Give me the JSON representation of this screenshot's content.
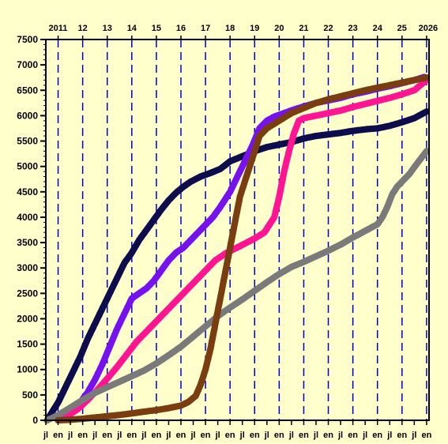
{
  "chart_data": {
    "type": "scatter",
    "title": "",
    "xlabel": "",
    "ylabel": "",
    "background": "#ffffcc",
    "grid": "dashed vertical lines at each January",
    "gridline_color": "#0000cc",
    "xlim": [
      2010.5,
      2026.1
    ],
    "ylim": [
      0,
      7500
    ],
    "y_ticks": [
      0,
      500,
      1000,
      1500,
      2000,
      2500,
      3000,
      3500,
      4000,
      4500,
      5000,
      5500,
      6000,
      6500,
      7000,
      7500
    ],
    "y_tick_labels": [
      "0",
      "500",
      "1000",
      "1500",
      "2000",
      "2500",
      "3000",
      "3500",
      "4000",
      "4500",
      "5000",
      "5500",
      "6000",
      "6500",
      "7000",
      "7500"
    ],
    "year_ticks": [
      2011,
      2012,
      2013,
      2014,
      2015,
      2016,
      2017,
      2018,
      2019,
      2020,
      2021,
      2022,
      2023,
      2024,
      2025,
      2026
    ],
    "year_labels": [
      "2011",
      "12",
      "13",
      "14",
      "15",
      "16",
      "17",
      "18",
      "19",
      "20",
      "21",
      "22",
      "23",
      "24",
      "25",
      "2026"
    ],
    "month_ticks": [
      2010.5,
      2011,
      2011.5,
      2012,
      2012.5,
      2013,
      2013.5,
      2014,
      2014.5,
      2015,
      2015.5,
      2016,
      2016.5,
      2017,
      2017.5,
      2018,
      2018.5,
      2019,
      2019.5,
      2020,
      2020.5,
      2021,
      2021.5,
      2022,
      2022.5,
      2023,
      2023.5,
      2024,
      2024.5,
      2025,
      2025.5,
      2026
    ],
    "month_labels": [
      "jl",
      "en",
      "jl",
      "en",
      "jl",
      "en",
      "jl",
      "en",
      "jl",
      "en",
      "jl",
      "en",
      "jl",
      "en",
      "jl",
      "en",
      "jl",
      "en",
      "jl",
      "en",
      "jl",
      "en",
      "jl",
      "en",
      "jl",
      "en",
      "jl",
      "en",
      "jl",
      "en",
      "jl",
      "en"
    ],
    "series": [
      {
        "color": "#0d0d4d",
        "x": [
          2010.55,
          2010.7,
          2011.0,
          2011.3,
          2011.6,
          2011.9,
          2012.2,
          2012.5,
          2012.8,
          2013.1,
          2013.4,
          2013.7,
          2014.0,
          2014.3,
          2014.6,
          2014.9,
          2015.2,
          2015.5,
          2015.8,
          2016.1,
          2016.4,
          2016.8,
          2017.2,
          2017.6,
          2018.0,
          2018.5,
          2019.0,
          2019.5,
          2020.0,
          2020.5,
          2021.0,
          2021.5,
          2022.0,
          2022.5,
          2023.0,
          2023.5,
          2024.0,
          2024.5,
          2025.0,
          2025.5,
          2026.0
        ],
        "y": [
          0,
          120,
          350,
          650,
          950,
          1250,
          1600,
          1900,
          2200,
          2500,
          2800,
          3100,
          3300,
          3550,
          3750,
          3950,
          4150,
          4330,
          4480,
          4600,
          4700,
          4800,
          4870,
          4950,
          5100,
          5200,
          5300,
          5380,
          5430,
          5480,
          5550,
          5600,
          5630,
          5660,
          5700,
          5730,
          5750,
          5800,
          5870,
          5950,
          6080
        ]
      },
      {
        "color": "#7711ee",
        "x": [
          2011.0,
          2011.3,
          2011.6,
          2011.9,
          2012.2,
          2012.5,
          2012.8,
          2013.1,
          2013.4,
          2013.7,
          2014.0,
          2014.3,
          2014.6,
          2014.9,
          2015.2,
          2015.5,
          2015.8,
          2016.1,
          2016.4,
          2016.7,
          2017.0,
          2017.3,
          2017.6,
          2018.0,
          2018.3,
          2018.6,
          2018.9,
          2019.2,
          2019.5,
          2019.8,
          2020.2,
          2020.6,
          2021.0,
          2021.5,
          2022.0,
          2022.5,
          2023.0,
          2023.5,
          2024.0,
          2024.5,
          2025.0,
          2025.5,
          2025.9
        ],
        "y": [
          0,
          80,
          200,
          350,
          550,
          800,
          1100,
          1450,
          1800,
          2100,
          2400,
          2500,
          2600,
          2750,
          2950,
          3150,
          3300,
          3400,
          3550,
          3700,
          3850,
          4000,
          4200,
          4500,
          4800,
          5100,
          5400,
          5750,
          5900,
          5980,
          6050,
          6120,
          6180,
          6250,
          6300,
          6350,
          6420,
          6470,
          6530,
          6580,
          6640,
          6700,
          6760
        ]
      },
      {
        "color": "#ff1493",
        "x": [
          2011.0,
          2011.4,
          2011.8,
          2012.2,
          2012.6,
          2013.0,
          2013.4,
          2013.8,
          2014.2,
          2014.6,
          2015.0,
          2015.4,
          2015.8,
          2016.2,
          2016.6,
          2017.0,
          2017.4,
          2017.8,
          2018.2,
          2018.6,
          2019.0,
          2019.4,
          2019.6,
          2019.8,
          2020.0,
          2020.2,
          2020.4,
          2020.6,
          2020.8,
          2021.0,
          2021.5,
          2022.0,
          2022.5,
          2023.0,
          2023.5,
          2024.0,
          2024.5,
          2025.0,
          2025.5,
          2026.0
        ],
        "y": [
          0,
          90,
          220,
          400,
          600,
          820,
          1050,
          1300,
          1550,
          1750,
          1950,
          2150,
          2350,
          2550,
          2750,
          2950,
          3150,
          3280,
          3380,
          3480,
          3580,
          3700,
          3850,
          4000,
          4400,
          4900,
          5300,
          5650,
          5900,
          5950,
          6000,
          6050,
          6100,
          6170,
          6230,
          6290,
          6350,
          6420,
          6500,
          6700
        ]
      },
      {
        "color": "#7a7a7a",
        "x": [
          2010.55,
          2011.0,
          2011.5,
          2012.0,
          2012.5,
          2013.0,
          2013.5,
          2014.0,
          2014.5,
          2015.0,
          2015.5,
          2016.0,
          2016.5,
          2017.0,
          2017.5,
          2018.0,
          2018.5,
          2019.0,
          2019.5,
          2020.0,
          2020.5,
          2021.0,
          2021.5,
          2022.0,
          2022.5,
          2023.0,
          2023.5,
          2024.0,
          2024.2,
          2024.4,
          2024.6,
          2024.8,
          2025.0,
          2025.3,
          2025.6,
          2026.0
        ],
        "y": [
          0,
          100,
          250,
          400,
          540,
          650,
          760,
          870,
          980,
          1120,
          1280,
          1450,
          1650,
          1850,
          2050,
          2220,
          2380,
          2550,
          2720,
          2880,
          3020,
          3120,
          3230,
          3340,
          3460,
          3600,
          3730,
          3860,
          4000,
          4200,
          4450,
          4600,
          4700,
          4850,
          5050,
          5300
        ]
      },
      {
        "color": "#7a3d10",
        "x": [
          2011.0,
          2011.5,
          2012.0,
          2012.5,
          2013.0,
          2013.5,
          2014.0,
          2014.5,
          2015.0,
          2015.5,
          2016.0,
          2016.3,
          2016.6,
          2016.8,
          2017.0,
          2017.2,
          2017.4,
          2017.6,
          2017.8,
          2018.0,
          2018.2,
          2018.4,
          2018.6,
          2018.8,
          2019.0,
          2019.2,
          2019.5,
          2020.0,
          2020.5,
          2021.0,
          2021.5,
          2022.0,
          2022.5,
          2023.0,
          2023.5,
          2024.0,
          2024.5,
          2025.0,
          2025.5,
          2026.0
        ],
        "y": [
          0,
          10,
          30,
          55,
          80,
          105,
          135,
          170,
          200,
          240,
          290,
          360,
          480,
          700,
          1000,
          1400,
          1900,
          2400,
          2900,
          3400,
          3900,
          4400,
          4700,
          5000,
          5300,
          5600,
          5750,
          5900,
          6050,
          6150,
          6250,
          6320,
          6380,
          6440,
          6500,
          6550,
          6600,
          6650,
          6700,
          6750
        ]
      }
    ]
  }
}
